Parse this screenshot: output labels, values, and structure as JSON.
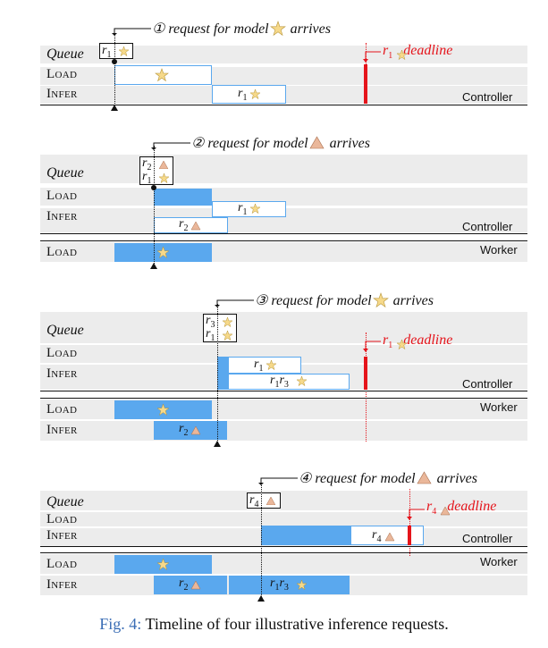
{
  "figure": {
    "caption_label": "Fig. 4:",
    "caption_text": " Timeline of four illustrative inference requests."
  },
  "row_labels": {
    "queue": "Queue",
    "load": "Load",
    "infer": "Infer"
  },
  "tags": {
    "controller": "Controller",
    "worker": "Worker"
  },
  "icons": {
    "model_star": "star-icon",
    "model_triangle": "triangle-icon",
    "star_color": "#f6d98a",
    "triangle_color": "#eab79a",
    "blue": "#5aa8ee",
    "red": "#e5141b"
  },
  "panels": [
    {
      "annotation": "① request for model",
      "annotation_tail": "arrives",
      "model": "star",
      "queue": [
        "r1"
      ],
      "deadline": "deadline",
      "infer_box": "r1"
    },
    {
      "annotation": "② request for model",
      "annotation_tail": "arrives",
      "model": "triangle",
      "queue": [
        "r2",
        "r1"
      ],
      "infer_boxes": [
        "r1",
        "r2"
      ]
    },
    {
      "annotation": "③ request for model",
      "annotation_tail": "arrives",
      "model": "star",
      "queue": [
        "r3",
        "r1"
      ],
      "deadline": "deadline",
      "infer_boxes": [
        "r1",
        "r1r3"
      ],
      "worker_infer": "r2"
    },
    {
      "annotation": "④ request for model",
      "annotation_tail": "arrives",
      "model": "triangle",
      "queue": [
        "r4"
      ],
      "deadline": "deadline",
      "infer_box": "r4",
      "worker_infer": [
        "r2",
        "r1r3"
      ]
    }
  ],
  "subscripts": {
    "r1": "1",
    "r2": "2",
    "r3": "3",
    "r4": "4",
    "r": "r"
  }
}
